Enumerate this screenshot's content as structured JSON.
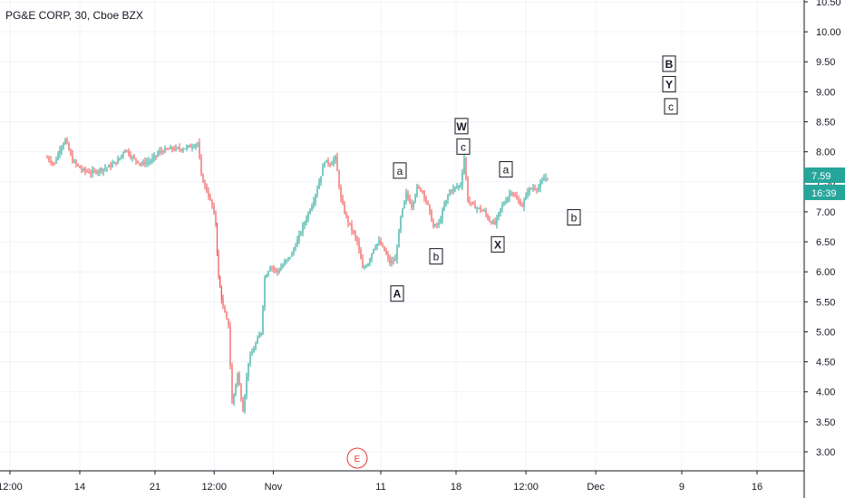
{
  "chart_data": {
    "type": "candlestick",
    "title": "PG&E CORP, 30, Cboe BZX",
    "ylim": [
      2.6,
      10.5
    ],
    "y_ticks": [
      "3.00",
      "3.50",
      "4.00",
      "4.50",
      "5.00",
      "5.50",
      "6.00",
      "6.50",
      "7.00",
      "7.50",
      "8.00",
      "8.50",
      "9.00",
      "9.50",
      "10.00",
      "10.50"
    ],
    "x_ticks": [
      "12:00",
      "14",
      "21",
      "12:00",
      "Nov",
      "11",
      "18",
      "12:00",
      "Dec",
      "9",
      "16"
    ],
    "last_price": "7.59",
    "countdown": "16:39",
    "event_marker": "E",
    "colors": {
      "up": "#26a69a",
      "down": "#ef5350",
      "tag_price": "#26a69a",
      "tag_time": "#26a69a",
      "event": "#e53935"
    },
    "waves": [
      {
        "label": "W",
        "boxed": true,
        "bold": true,
        "x": "18",
        "y": 8.42
      },
      {
        "label": "c",
        "boxed": true,
        "bold": false,
        "x": "18",
        "y": 8.08
      },
      {
        "label": "a",
        "boxed": true,
        "bold": false,
        "x": "Nov 11-12",
        "y": 7.68
      },
      {
        "label": "a",
        "boxed": true,
        "bold": false,
        "x": "Nov 20-21",
        "y": 7.7
      },
      {
        "label": "b",
        "boxed": true,
        "bold": false,
        "x": "Nov 15-16",
        "y": 6.25
      },
      {
        "label": "A",
        "boxed": true,
        "bold": true,
        "x": "11",
        "y": 5.63
      },
      {
        "label": "X",
        "boxed": true,
        "bold": true,
        "x": "Nov 19-20",
        "y": 6.45
      },
      {
        "label": "b",
        "boxed": true,
        "bold": false,
        "x": "Nov 26-27",
        "y": 6.9
      },
      {
        "label": "B",
        "boxed": true,
        "bold": true,
        "x": "Dec 8-9",
        "y": 9.46
      },
      {
        "label": "Y",
        "boxed": true,
        "bold": true,
        "x": "Dec 8-9",
        "y": 9.12
      },
      {
        "label": "c",
        "boxed": true,
        "bold": false,
        "x": "Dec 8-9",
        "y": 8.75
      }
    ]
  }
}
